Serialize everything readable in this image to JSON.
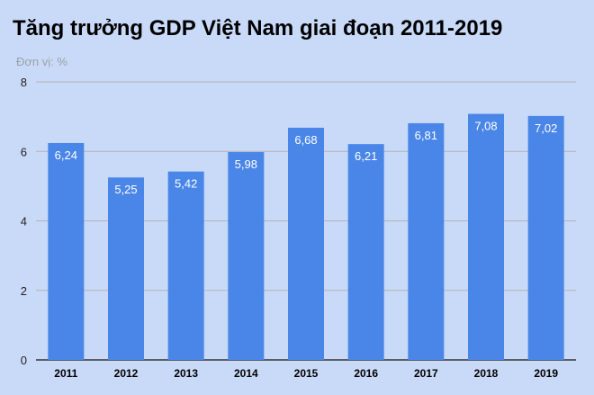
{
  "chart_data": {
    "type": "bar",
    "title": "Tăng trưởng GDP Việt Nam giai đoạn 2011-2019",
    "subtitle": "Đơn vị: %",
    "categories": [
      "2011",
      "2012",
      "2013",
      "2014",
      "2015",
      "2016",
      "2017",
      "2018",
      "2019"
    ],
    "values": [
      6.24,
      5.25,
      5.42,
      5.98,
      6.68,
      6.21,
      6.81,
      7.08,
      7.02
    ],
    "data_labels": [
      "6,24",
      "5,25",
      "5,42",
      "5,98",
      "6,68",
      "6,21",
      "6,81",
      "7,08",
      "7,02"
    ],
    "y_ticks": [
      "0",
      "2",
      "4",
      "6",
      "8"
    ],
    "ylim": [
      0,
      8
    ],
    "grid": true,
    "legend": "none",
    "colors": {
      "bar": "#4a86e8",
      "background": "#c9daf8",
      "gridline": "#b3b3b3",
      "axis": "#333333",
      "label_text": "#ffffff",
      "subtitle_text": "#9aa0a6"
    }
  }
}
